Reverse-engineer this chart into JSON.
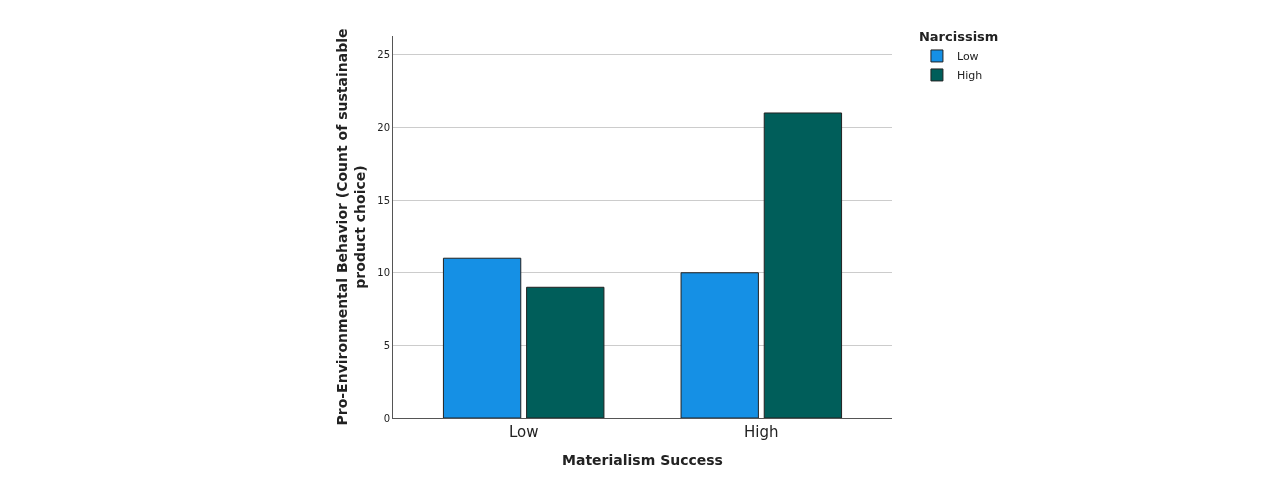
{
  "chart_data": {
    "type": "bar",
    "xlabel": "Materialism Success",
    "ylabel": "Pro-Environmental Behavior (Count of sustainable\nproduct choice)",
    "legend_title": "Narcissism",
    "categories": [
      "Low",
      "High"
    ],
    "series": [
      {
        "name": "Low",
        "color": "#1590e5",
        "values": [
          11,
          10
        ]
      },
      {
        "name": "High",
        "color": "#005e5a",
        "values": [
          9,
          21
        ]
      }
    ],
    "ylim": [
      0,
      26.3
    ],
    "yticks": [
      0,
      5,
      10,
      15,
      20,
      25
    ],
    "grid": "y",
    "legend": "top right"
  }
}
